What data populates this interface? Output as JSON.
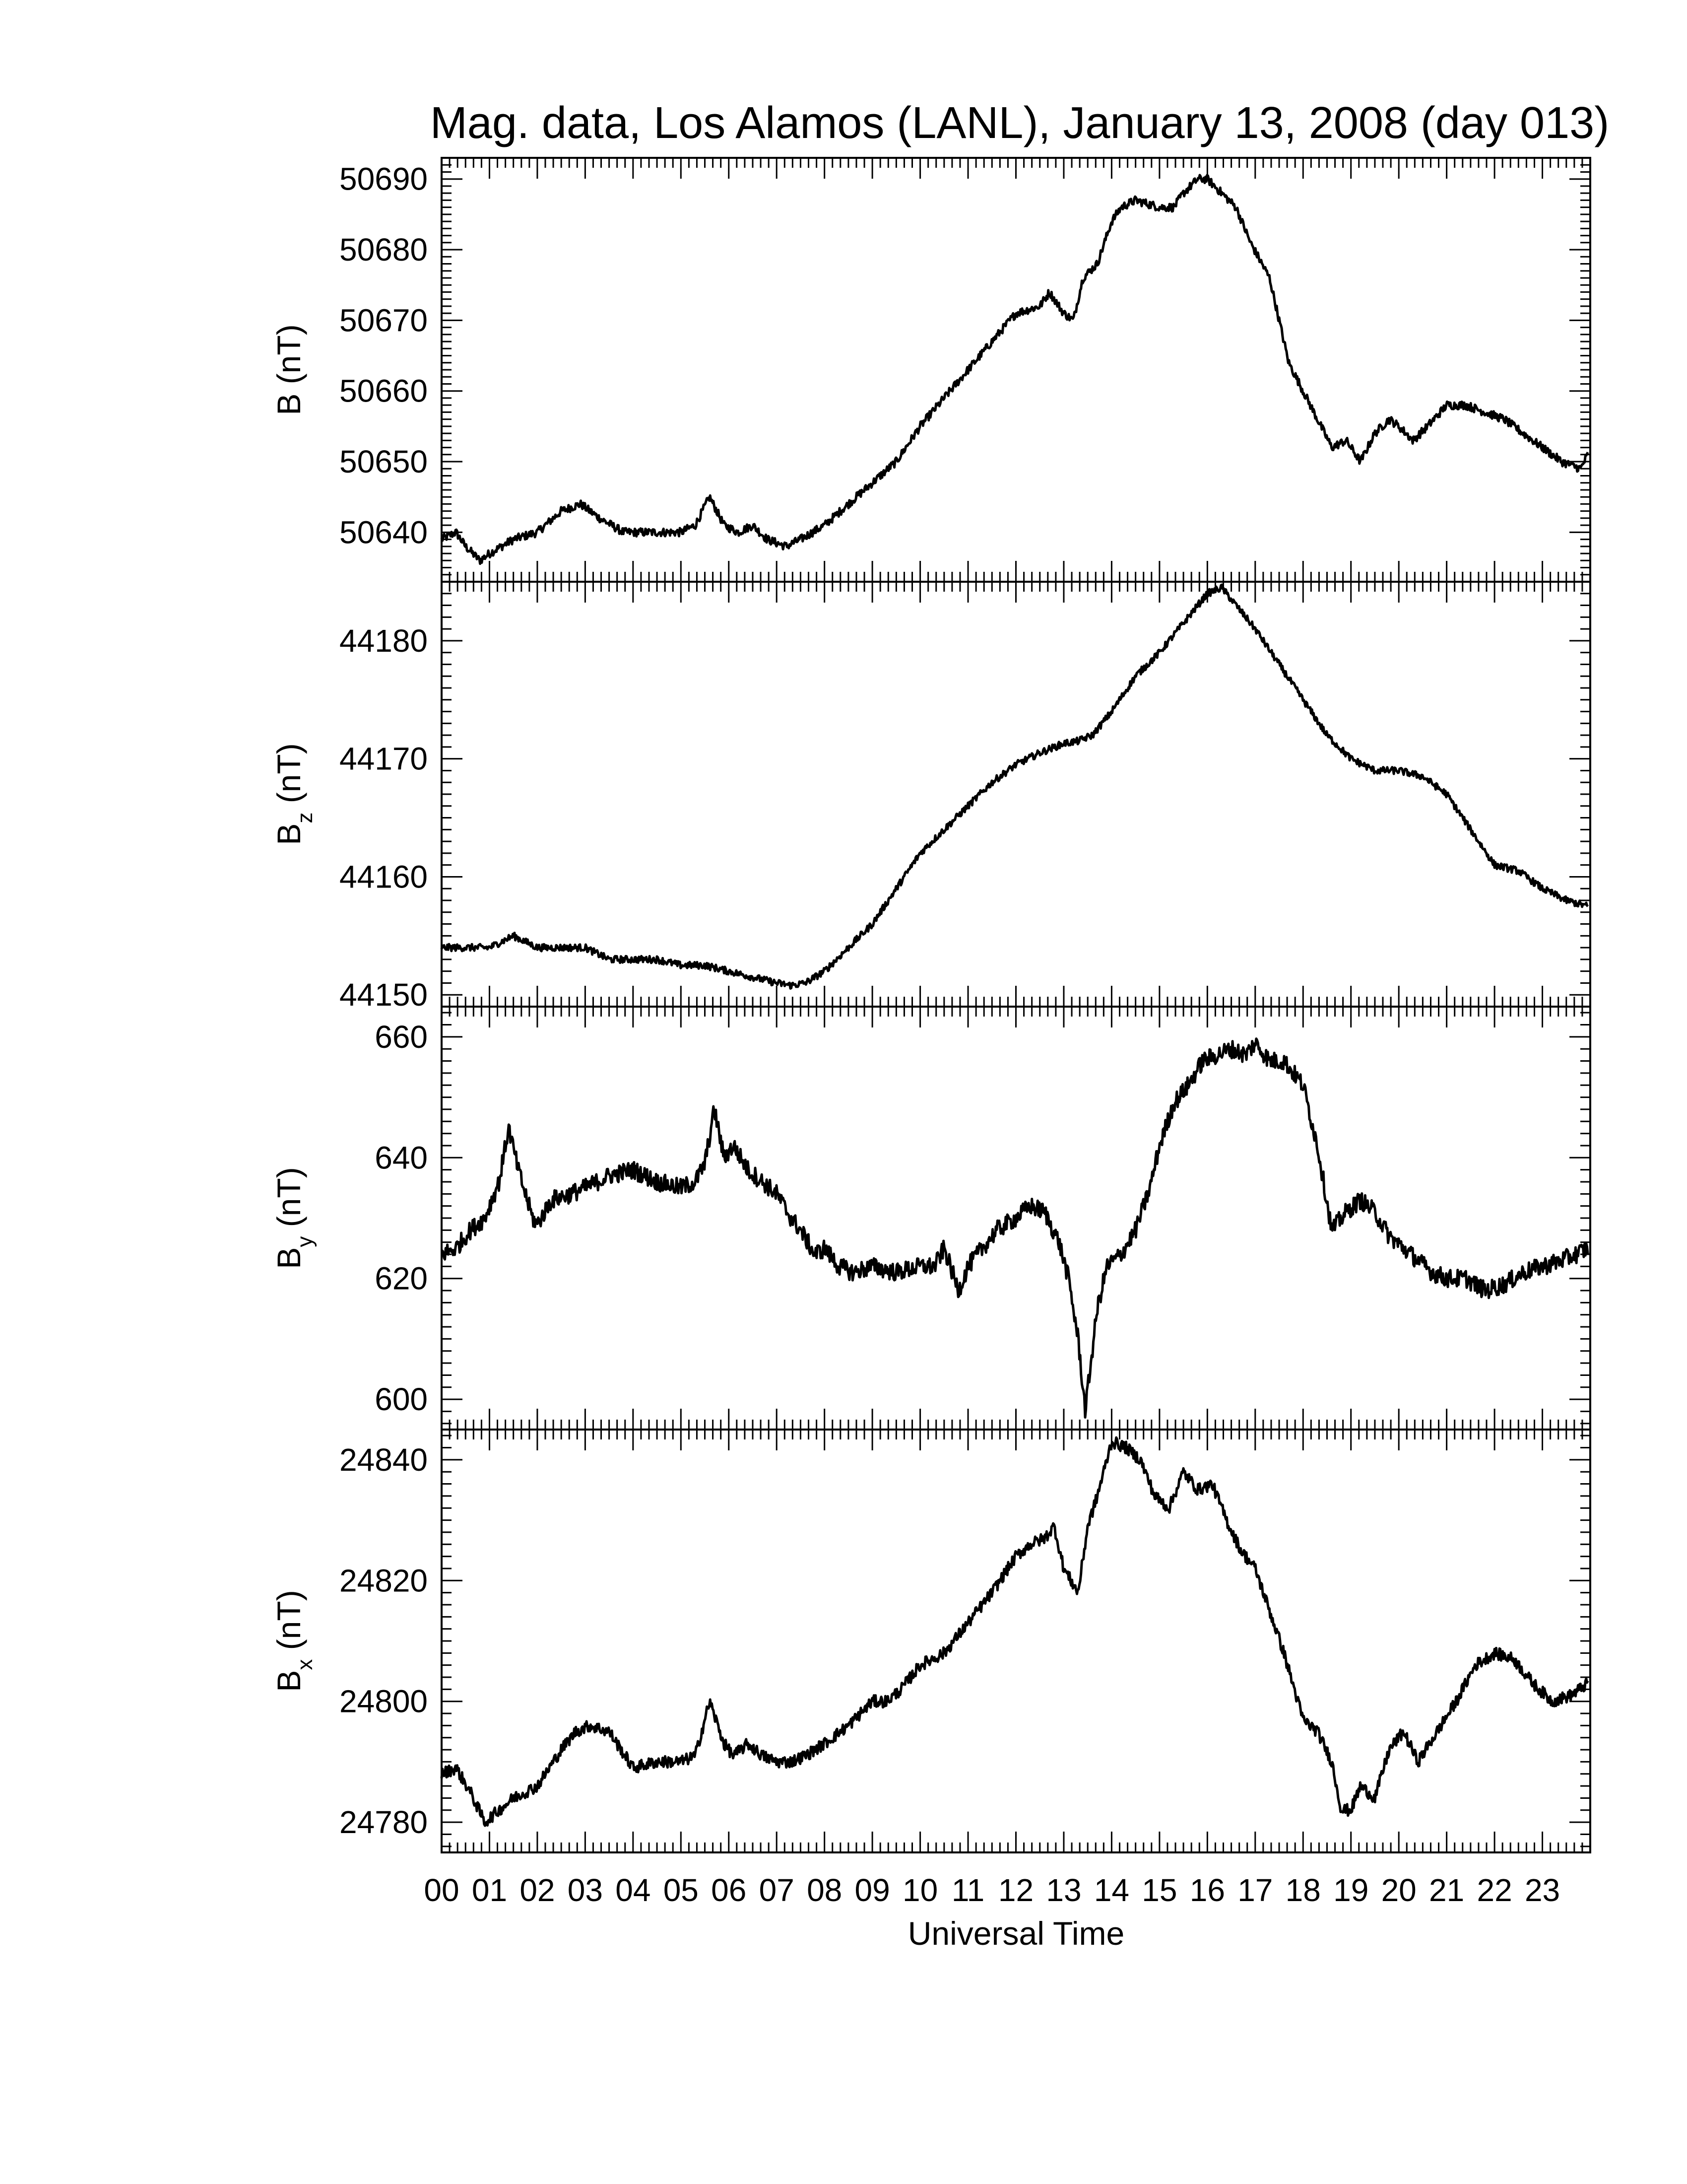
{
  "chart_data": {
    "type": "line",
    "title": "Mag. data, Los Alamos (LANL), January 13, 2008 (day 013)",
    "xlabel": "Universal Time",
    "xlim": [
      0,
      24
    ],
    "x_tick_labels": [
      "00",
      "01",
      "02",
      "03",
      "04",
      "05",
      "06",
      "07",
      "08",
      "09",
      "10",
      "11",
      "12",
      "13",
      "14",
      "15",
      "16",
      "17",
      "18",
      "19",
      "20",
      "21",
      "22",
      "23"
    ],
    "line_color": "#000000",
    "grid": false,
    "panels": [
      {
        "ylabel": "B (nT)",
        "ylabel_base": "B",
        "ylabel_sub": "",
        "ylabel_unit": " (nT)",
        "ylim": [
          50633,
          50693
        ],
        "y_ticks": [
          50640,
          50650,
          50660,
          50670,
          50680,
          50690
        ],
        "y_tick_labels": [
          "50640",
          "50650",
          "50660",
          "50670",
          "50680",
          "50690"
        ],
        "noise": 0.6,
        "series": [
          {
            "x": [
              0.0,
              0.3,
              0.5,
              0.8,
              1.0,
              1.5,
              2.0,
              2.5,
              2.9,
              3.3,
              3.8,
              4.5,
              5.0,
              5.3,
              5.6,
              5.9,
              6.2,
              6.5,
              6.8,
              7.2,
              7.5,
              8.0,
              8.5,
              9.0,
              9.5,
              10.0,
              10.5,
              11.0,
              11.5,
              12.0,
              12.5,
              12.7,
              13.0,
              13.2,
              13.4,
              13.7,
              14.0,
              14.2,
              14.5,
              15.0,
              15.3,
              15.5,
              15.8,
              16.0,
              16.3,
              16.6,
              16.9,
              17.3,
              17.7,
              18.0,
              18.3,
              18.6,
              18.9,
              19.2,
              19.5,
              19.8,
              20.0,
              20.3,
              20.6,
              21.0,
              21.4,
              21.8,
              22.2,
              22.6,
              23.0,
              23.4,
              23.8,
              23.95
            ],
            "y": [
              50639,
              50640,
              50638,
              50636,
              50637,
              50639,
              50640,
              50643,
              50644,
              50642,
              50640,
              50640,
              50640,
              50641,
              50645,
              50641,
              50640,
              50641,
              50639,
              50638,
              50639,
              50641,
              50644,
              50647,
              50650,
              50655,
              50659,
              50663,
              50667,
              50671,
              50672,
              50674,
              50671,
              50670,
              50676,
              50678,
              50684,
              50686,
              50687,
              50686,
              50686,
              50688,
              50690,
              50690,
              50688,
              50686,
              50681,
              50676,
              50664,
              50660,
              50656,
              50652,
              50653,
              50650,
              50654,
              50656,
              50655,
              50653,
              50655,
              50658,
              50658,
              50657,
              50656,
              50654,
              50652,
              50650,
              50649,
              50651
            ]
          }
        ]
      },
      {
        "ylabel": "Bz (nT)",
        "ylabel_base": "B",
        "ylabel_sub": "z",
        "ylabel_unit": " (nT)",
        "ylim": [
          44149,
          44185
        ],
        "y_ticks": [
          44150,
          44160,
          44170,
          44180
        ],
        "y_tick_labels": [
          "44150",
          "44160",
          "44170",
          "44180"
        ],
        "noise": 0.3,
        "series": [
          {
            "x": [
              0.0,
              0.5,
              1.0,
              1.5,
              2.0,
              2.5,
              3.0,
              3.5,
              4.0,
              4.5,
              5.0,
              5.5,
              6.0,
              6.5,
              7.0,
              7.3,
              7.6,
              8.0,
              8.5,
              9.0,
              9.5,
              10.0,
              10.5,
              11.0,
              11.5,
              12.0,
              12.5,
              13.0,
              13.3,
              13.6,
              14.0,
              14.5,
              15.0,
              15.5,
              16.0,
              16.3,
              16.6,
              17.0,
              17.5,
              18.0,
              18.5,
              19.0,
              19.5,
              20.0,
              20.5,
              21.0,
              21.5,
              22.0,
              22.5,
              23.0,
              23.5,
              23.95
            ],
            "y": [
              44154,
              44154,
              44154,
              44155,
              44154,
              44154,
              44154,
              44153,
              44153,
              44153,
              44152.5,
              44152.5,
              44152,
              44151.5,
              44151,
              44150.8,
              44151,
              44152,
              44154,
              44156,
              44159,
              44162,
              44164,
              44166,
              44168,
              44169.5,
              44170.5,
              44171.3,
              44171.5,
              44172,
              44174,
              44177,
              44179,
              44181.5,
              44184,
              44184.5,
              44183,
              44181,
              44178,
              44175,
              44172,
              44170,
              44169,
              44169,
              44168.5,
              44167,
              44164,
              44161,
              44160.5,
              44159,
              44158,
              44157.5
            ]
          }
        ]
      },
      {
        "ylabel": "By (nT)",
        "ylabel_base": "B",
        "ylabel_sub": "y",
        "ylabel_unit": " (nT)",
        "ylim": [
          595,
          665
        ],
        "y_ticks": [
          600,
          620,
          640,
          660
        ],
        "y_tick_labels": [
          "600",
          "620",
          "640",
          "660"
        ],
        "noise": 1.5,
        "series": [
          {
            "x": [
              0.0,
              0.3,
              0.6,
              0.9,
              1.2,
              1.4,
              1.6,
              1.9,
              2.0,
              2.3,
              2.7,
              3.0,
              3.5,
              4.0,
              4.5,
              5.0,
              5.3,
              5.5,
              5.7,
              5.9,
              6.1,
              6.4,
              6.7,
              7.0,
              7.3,
              7.5,
              7.8,
              8.0,
              8.3,
              8.6,
              9.0,
              9.5,
              10.0,
              10.3,
              10.5,
              10.8,
              11.0,
              11.3,
              11.6,
              12.0,
              12.3,
              12.6,
              12.9,
              13.1,
              13.3,
              13.45,
              13.55,
              13.7,
              13.9,
              14.2,
              14.5,
              14.8,
              15.0,
              15.3,
              15.6,
              15.9,
              16.2,
              16.5,
              16.8,
              17.0,
              17.3,
              17.6,
              18.0,
              18.3,
              18.6,
              18.9,
              19.2,
              19.5,
              19.8,
              20.1,
              20.4,
              20.7,
              21.0,
              21.4,
              21.8,
              22.2,
              22.6,
              23.0,
              23.4,
              23.7,
              23.95
            ],
            "y": [
              624,
              625,
              628,
              630,
              636,
              645,
              638,
              630,
              629,
              633,
              634,
              635,
              637,
              638,
              636,
              635,
              636,
              639,
              648,
              640,
              642,
              638,
              636,
              634,
              630,
              628,
              624,
              625,
              622,
              621,
              622,
              621,
              622,
              622,
              625,
              618,
              622,
              625,
              628,
              630,
              632,
              631,
              626,
              620,
              610,
              598,
              605,
              615,
              622,
              624,
              628,
              635,
              642,
              649,
              652,
              656,
              657,
              658,
              657,
              659,
              656,
              656,
              652,
              642,
              628,
              631,
              633,
              631,
              627,
              625,
              623,
              621,
              620,
              620,
              618,
              619,
              621,
              622,
              623,
              624,
              625
            ]
          }
        ]
      },
      {
        "ylabel": "Bx (nT)",
        "ylabel_base": "B",
        "ylabel_sub": "x",
        "ylabel_unit": " (nT)",
        "ylim": [
          24775,
          24845
        ],
        "y_ticks": [
          24780,
          24800,
          24820,
          24840
        ],
        "y_tick_labels": [
          "24780",
          "24800",
          "24820",
          "24840"
        ],
        "noise": 1.0,
        "series": [
          {
            "x": [
              0.0,
              0.3,
              0.6,
              0.9,
              1.2,
              1.5,
              2.0,
              2.5,
              2.8,
              3.1,
              3.5,
              4.0,
              4.5,
              5.0,
              5.3,
              5.6,
              5.9,
              6.1,
              6.4,
              6.7,
              7.0,
              7.3,
              7.6,
              8.0,
              8.5,
              9.0,
              9.3,
              9.6,
              10.0,
              10.5,
              11.0,
              11.5,
              12.0,
              12.3,
              12.6,
              12.8,
              13.0,
              13.3,
              13.5,
              13.7,
              14.0,
              14.3,
              14.6,
              14.9,
              15.2,
              15.5,
              15.8,
              16.1,
              16.4,
              16.7,
              17.0,
              17.3,
              17.6,
              18.0,
              18.3,
              18.6,
              18.8,
              19.0,
              19.2,
              19.5,
              19.8,
              20.1,
              20.4,
              20.8,
              21.2,
              21.6,
              22.0,
              22.4,
              22.8,
              23.2,
              23.6,
              23.95
            ],
            "y": [
              24788,
              24789,
              24785,
              24780,
              24782,
              24784,
              24786,
              24792,
              24795,
              24796,
              24795,
              24789,
              24790,
              24790,
              24791,
              24800,
              24793,
              24791,
              24793,
              24791,
              24790,
              24790,
              24791,
              24793,
              24796,
              24800,
              24800,
              24802,
              24806,
              24808,
              24813,
              24818,
              24824,
              24826,
              24827,
              24829,
              24822,
              24818,
              24829,
              24834,
              24843,
              24842,
              24840,
              24834,
              24832,
              24838,
              24835,
              24836,
              24830,
              24825,
              24822,
              24815,
              24808,
              24797,
              24795,
              24790,
              24782,
              24782,
              24786,
              24784,
              24792,
              24795,
              24790,
              24795,
              24800,
              24806,
              24808,
              24807,
              24803,
              24800,
              24801,
              24803
            ]
          }
        ]
      }
    ]
  }
}
